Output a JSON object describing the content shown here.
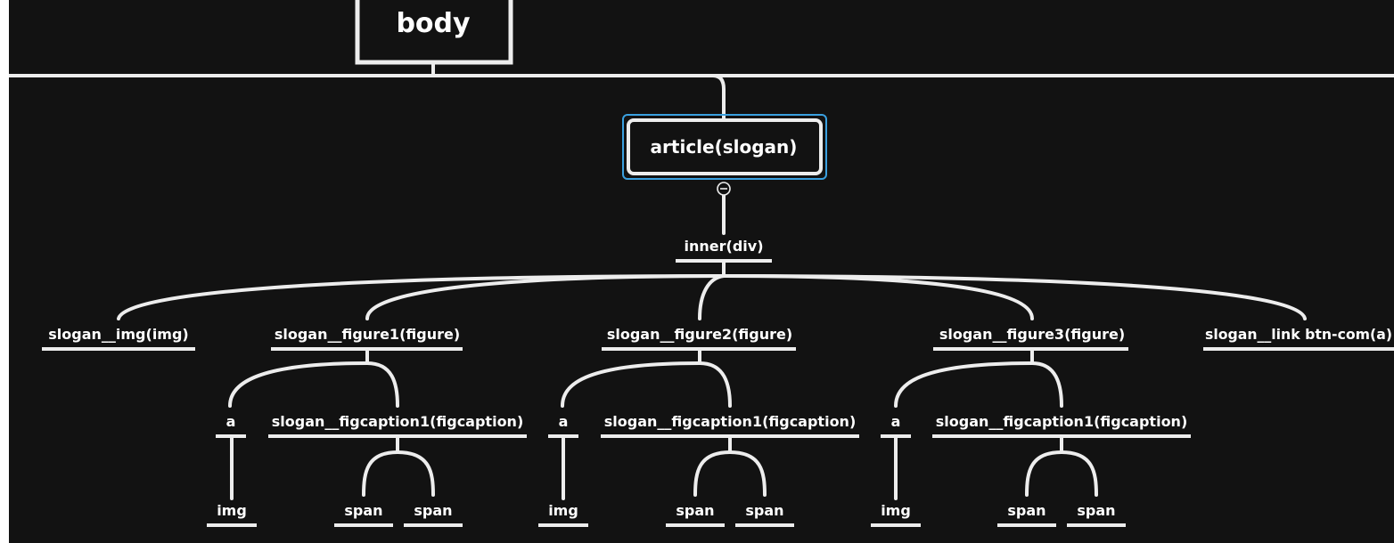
{
  "colors": {
    "background": "#121212",
    "line": "#ededed",
    "text": "#ffffff",
    "selection": "#3aa0e0"
  },
  "nodes": {
    "root": "body",
    "article": "article(slogan)",
    "inner": "inner(div)",
    "slogan_img": "slogan__img(img)",
    "figure1": "slogan__figure1(figure)",
    "figure2": "slogan__figure2(figure)",
    "figure3": "slogan__figure3(figure)",
    "link": "slogan__link btn-com(a)",
    "f1_a": "a",
    "f1_caption": "slogan__figcaption1(figcaption)",
    "f1_img": "img",
    "f1_span1": "span",
    "f1_span2": "span",
    "f2_a": "a",
    "f2_caption": "slogan__figcaption1(figcaption)",
    "f2_img": "img",
    "f2_span1": "span",
    "f2_span2": "span",
    "f3_a": "a",
    "f3_caption": "slogan__figcaption1(figcaption)",
    "f3_img": "img",
    "f3_span1": "span",
    "f3_span2": "span"
  },
  "collapse_icon": "minus-circle-icon"
}
